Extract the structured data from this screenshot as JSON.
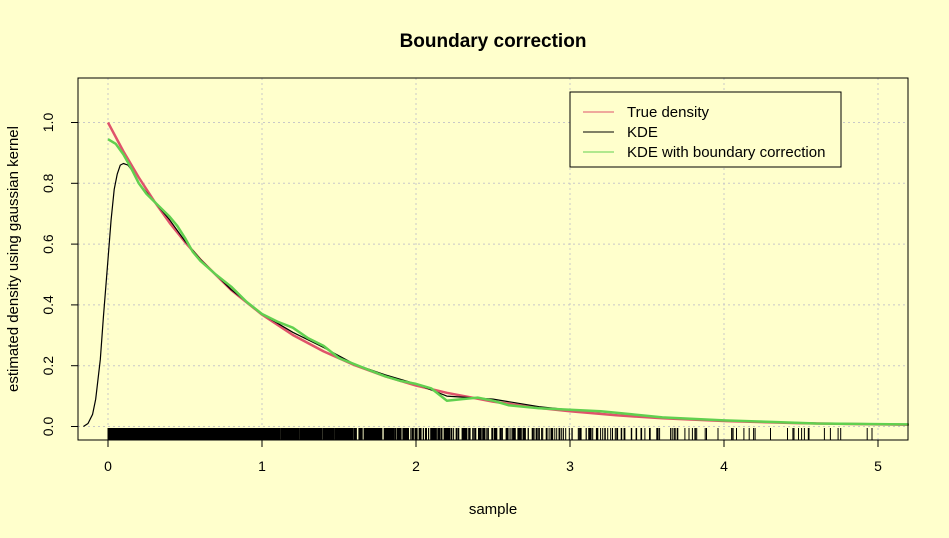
{
  "chart_data": {
    "type": "line",
    "title": "Boundary correction",
    "xlabel": "sample",
    "ylabel": "estimated density using gaussian kernel",
    "xlim": [
      -0.2,
      5.2
    ],
    "ylim": [
      -0.04,
      1.14
    ],
    "x_ticks": [
      0,
      1,
      2,
      3,
      4,
      5
    ],
    "y_ticks": [
      0.0,
      0.2,
      0.4,
      0.6,
      0.8,
      1.0
    ],
    "x_tick_labels": [
      "0",
      "1",
      "2",
      "3",
      "4",
      "5"
    ],
    "y_tick_labels": [
      "0.0",
      "0.2",
      "0.4",
      "0.6",
      "0.8",
      "1.0"
    ],
    "grid": true,
    "legend_position": "top-right",
    "background": "#FFFFCC",
    "series": [
      {
        "name": "True density",
        "color": "#DF536B",
        "x": [
          0,
          0.1,
          0.2,
          0.3,
          0.4,
          0.5,
          0.6,
          0.8,
          1.0,
          1.2,
          1.4,
          1.6,
          1.8,
          2.0,
          2.2,
          2.5,
          2.8,
          3.0,
          3.3,
          3.6,
          4.0,
          4.5,
          5.0,
          5.2
        ],
        "y": [
          1.0,
          0.905,
          0.819,
          0.741,
          0.67,
          0.607,
          0.549,
          0.449,
          0.368,
          0.301,
          0.247,
          0.202,
          0.165,
          0.135,
          0.111,
          0.082,
          0.061,
          0.05,
          0.037,
          0.027,
          0.018,
          0.011,
          0.007,
          0.006
        ]
      },
      {
        "name": "KDE",
        "color": "#000000",
        "x": [
          -0.16,
          -0.13,
          -0.1,
          -0.08,
          -0.05,
          -0.03,
          0.0,
          0.02,
          0.04,
          0.06,
          0.08,
          0.1,
          0.13,
          0.16,
          0.2,
          0.3,
          0.4,
          0.5,
          0.6,
          0.8,
          1.0,
          1.2,
          1.4,
          1.6,
          1.8,
          2.0,
          2.2,
          2.5,
          2.8,
          3.0,
          3.3,
          3.6,
          4.0,
          4.5,
          5.0,
          5.2
        ],
        "y": [
          0.0,
          0.01,
          0.04,
          0.09,
          0.22,
          0.36,
          0.55,
          0.68,
          0.78,
          0.83,
          0.86,
          0.865,
          0.86,
          0.84,
          0.8,
          0.74,
          0.68,
          0.61,
          0.55,
          0.45,
          0.37,
          0.31,
          0.26,
          0.205,
          0.17,
          0.14,
          0.1,
          0.09,
          0.065,
          0.055,
          0.045,
          0.03,
          0.02,
          0.012,
          0.008,
          0.006
        ]
      },
      {
        "name": "KDE with boundary correction",
        "color": "#61D04F",
        "x": [
          0,
          0.05,
          0.1,
          0.15,
          0.2,
          0.25,
          0.3,
          0.35,
          0.4,
          0.45,
          0.5,
          0.55,
          0.6,
          0.7,
          0.8,
          0.9,
          1.0,
          1.1,
          1.2,
          1.3,
          1.4,
          1.5,
          1.6,
          1.7,
          1.8,
          1.9,
          2.0,
          2.1,
          2.2,
          2.3,
          2.4,
          2.5,
          2.6,
          2.8,
          3.0,
          3.2,
          3.4,
          3.6,
          3.8,
          4.0,
          4.3,
          4.6,
          5.0,
          5.2
        ],
        "y": [
          0.945,
          0.93,
          0.895,
          0.85,
          0.8,
          0.765,
          0.74,
          0.715,
          0.69,
          0.66,
          0.62,
          0.575,
          0.545,
          0.5,
          0.46,
          0.41,
          0.37,
          0.345,
          0.325,
          0.29,
          0.265,
          0.225,
          0.205,
          0.185,
          0.165,
          0.15,
          0.14,
          0.125,
          0.085,
          0.09,
          0.095,
          0.085,
          0.07,
          0.06,
          0.055,
          0.05,
          0.04,
          0.03,
          0.025,
          0.02,
          0.015,
          0.01,
          0.008,
          0.007
        ]
      }
    ]
  }
}
